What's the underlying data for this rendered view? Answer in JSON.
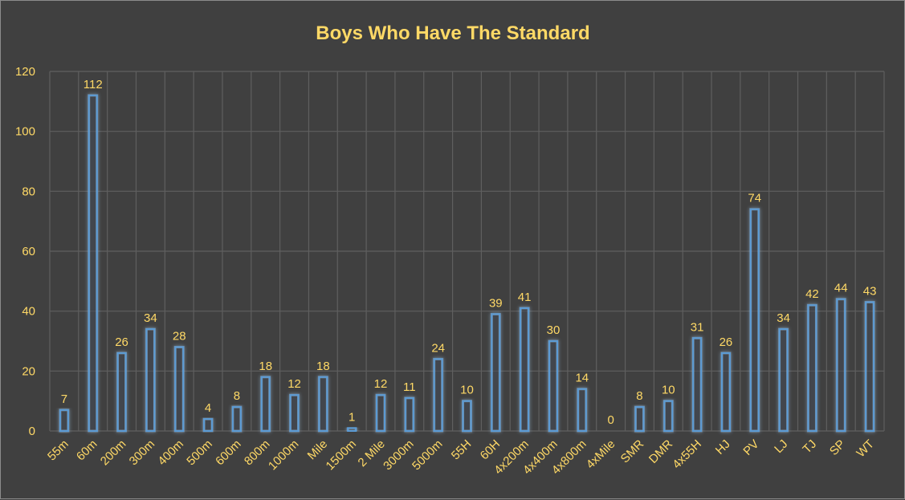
{
  "chart_data": {
    "type": "bar",
    "title": "Boys Who Have The Standard",
    "xlabel": "",
    "ylabel": "",
    "ylim": [
      0,
      120
    ],
    "yticks": [
      0,
      20,
      40,
      60,
      80,
      100,
      120
    ],
    "grid": true,
    "categories": [
      "55m",
      "60m",
      "200m",
      "300m",
      "400m",
      "500m",
      "600m",
      "800m",
      "1000m",
      "Mile",
      "1500m",
      "2 Mile",
      "3000m",
      "5000m",
      "55H",
      "60H",
      "4x200m",
      "4x400m",
      "4x800m",
      "4xMile",
      "SMR",
      "DMR",
      "4x55H",
      "HJ",
      "PV",
      "LJ",
      "TJ",
      "SP",
      "WT"
    ],
    "values": [
      7,
      112,
      26,
      34,
      28,
      4,
      8,
      18,
      12,
      18,
      1,
      12,
      11,
      24,
      10,
      39,
      41,
      30,
      14,
      0,
      8,
      10,
      31,
      26,
      74,
      34,
      42,
      44,
      43
    ],
    "colors": {
      "background": "#404040",
      "text": "#FFD966",
      "grid": "#5f5f5f",
      "bar_fill": "#444c58",
      "bar_stroke": "#5b9bd5",
      "bar_glow": "#9dc3e6"
    }
  }
}
